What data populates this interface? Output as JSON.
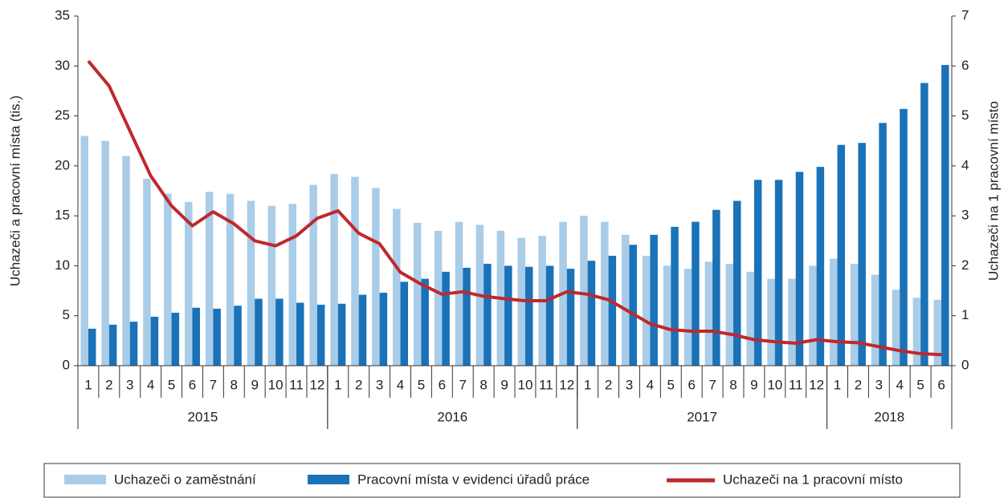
{
  "chart_data": {
    "type": "bar-line",
    "categories": [
      "1",
      "2",
      "3",
      "4",
      "5",
      "6",
      "7",
      "8",
      "9",
      "10",
      "11",
      "12",
      "1",
      "2",
      "3",
      "4",
      "5",
      "6",
      "7",
      "8",
      "9",
      "10",
      "11",
      "12",
      "1",
      "2",
      "3",
      "4",
      "5",
      "6",
      "7",
      "8",
      "9",
      "10",
      "11",
      "12",
      "1",
      "2",
      "3",
      "4",
      "5",
      "6"
    ],
    "x_groups": [
      "2015",
      "2016",
      "2017",
      "2018"
    ],
    "y_label": "Uchazeči a pracovní místa (tis.)",
    "y2_label": "Uchazeči na 1 pracovní místo",
    "ylim": [
      0,
      35
    ],
    "yticks": [
      0,
      5,
      10,
      15,
      20,
      25,
      30,
      35
    ],
    "y2lim": [
      0,
      7
    ],
    "y2ticks": [
      0,
      1,
      2,
      3,
      4,
      5,
      6,
      7
    ],
    "legend": "bottom",
    "series": [
      {
        "name": "Uchazeči o zaměstnání",
        "type": "bar",
        "color": "#a9cde8",
        "values": [
          23,
          22.5,
          21,
          18.7,
          17.2,
          16.4,
          17.4,
          17.2,
          16.5,
          16,
          16.2,
          18.1,
          19.2,
          18.9,
          17.8,
          15.7,
          14.3,
          13.5,
          14.4,
          14.1,
          13.5,
          12.8,
          13,
          14.4,
          15,
          14.4,
          13.1,
          11,
          10,
          9.7,
          10.4,
          10.2,
          9.4,
          8.7,
          8.7,
          10,
          10.7,
          10.2,
          9.1,
          7.6,
          6.8,
          6.6
        ]
      },
      {
        "name": "Pracovní místa v evidenci úřadů práce",
        "type": "bar",
        "color": "#1a72b8",
        "values": [
          3.7,
          4.1,
          4.4,
          4.9,
          5.3,
          5.8,
          5.7,
          6,
          6.7,
          6.7,
          6.3,
          6.1,
          6.2,
          7.1,
          7.3,
          8.4,
          8.7,
          9.4,
          9.8,
          10.2,
          10,
          9.9,
          10,
          9.7,
          10.5,
          11,
          12.1,
          13.1,
          13.9,
          14.4,
          15.6,
          16.5,
          18.6,
          18.6,
          19.4,
          19.9,
          22.1,
          22.3,
          24.3,
          25.7,
          28.3,
          30.1
        ]
      },
      {
        "name": "Uchazeči na 1 pracovní místo",
        "type": "line",
        "axis": "y2",
        "color": "#c0282d",
        "values": [
          6.1,
          5.6,
          4.7,
          3.8,
          3.2,
          2.8,
          3.08,
          2.84,
          2.5,
          2.4,
          2.6,
          2.95,
          3.1,
          2.65,
          2.44,
          1.87,
          1.63,
          1.43,
          1.48,
          1.39,
          1.34,
          1.3,
          1.3,
          1.48,
          1.43,
          1.32,
          1.08,
          0.84,
          0.72,
          0.69,
          0.69,
          0.62,
          0.52,
          0.48,
          0.45,
          0.52,
          0.48,
          0.46,
          0.38,
          0.3,
          0.24,
          0.22
        ]
      }
    ]
  }
}
